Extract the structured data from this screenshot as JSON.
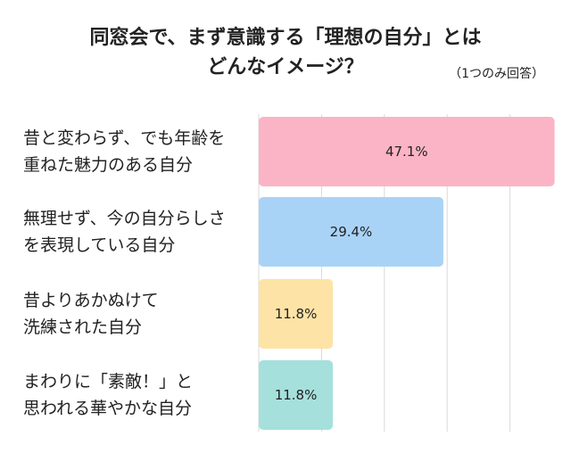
{
  "title_lines": [
    "同窓会で、まず意識する「理想の自分」とは",
    "どんなイメージ？"
  ],
  "note": "（1つのみ回答）",
  "chart_data": {
    "type": "bar",
    "orientation": "horizontal",
    "categories": [
      [
        "昔と変わらず、でも年齢を",
        "重ねた魅力のある自分"
      ],
      [
        "無理せず、今の自分らしさ",
        "を表現している自分"
      ],
      [
        "昔よりあかぬけて",
        "洗練された自分"
      ],
      [
        "まわりに「素敵！」と",
        "思われる華やかな自分"
      ]
    ],
    "values": [
      47.1,
      29.4,
      11.8,
      11.8
    ],
    "value_labels": [
      "47.1%",
      "29.4%",
      "11.8%",
      "11.8%"
    ],
    "colors": [
      "#fbb4c5",
      "#a9d3f6",
      "#fde3a5",
      "#a5e0dc"
    ],
    "xlim": [
      0,
      50
    ],
    "grid": true
  }
}
